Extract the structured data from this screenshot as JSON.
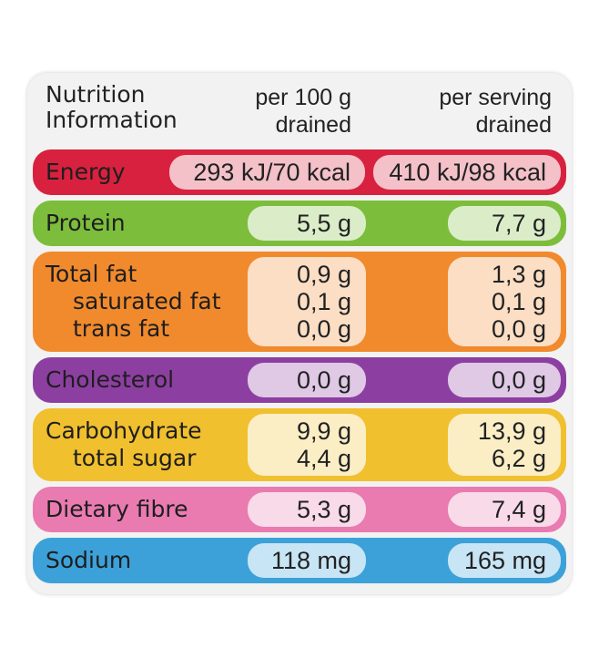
{
  "header": {
    "title": [
      "Nutrition",
      "Information"
    ],
    "columns": [
      [
        "per 100 g",
        "drained"
      ],
      [
        "per serving",
        "drained"
      ]
    ]
  },
  "rows": [
    {
      "labels": [
        "Energy"
      ],
      "per_100g": [
        "293 kJ/70 kcal"
      ],
      "per_serving": [
        "410 kJ/98 kcal"
      ]
    },
    {
      "labels": [
        "Protein"
      ],
      "per_100g": [
        "5,5 g"
      ],
      "per_serving": [
        "7,7 g"
      ]
    },
    {
      "labels": [
        "Total fat",
        "saturated fat",
        "trans fat"
      ],
      "per_100g": [
        "0,9 g",
        "0,1 g",
        "0,0 g"
      ],
      "per_serving": [
        "1,3 g",
        "0,1 g",
        "0,0 g"
      ]
    },
    {
      "labels": [
        "Cholesterol"
      ],
      "per_100g": [
        "0,0 g"
      ],
      "per_serving": [
        "0,0 g"
      ]
    },
    {
      "labels": [
        "Carbohydrate",
        "total sugar"
      ],
      "per_100g": [
        "9,9 g",
        "4,4 g"
      ],
      "per_serving": [
        "13,9 g",
        "6,2 g"
      ]
    },
    {
      "labels": [
        "Dietary fibre"
      ],
      "per_100g": [
        "5,3 g"
      ],
      "per_serving": [
        "7,4 g"
      ]
    },
    {
      "labels": [
        "Sodium"
      ],
      "per_100g": [
        "118 mg"
      ],
      "per_serving": [
        "165 mg"
      ]
    }
  ]
}
